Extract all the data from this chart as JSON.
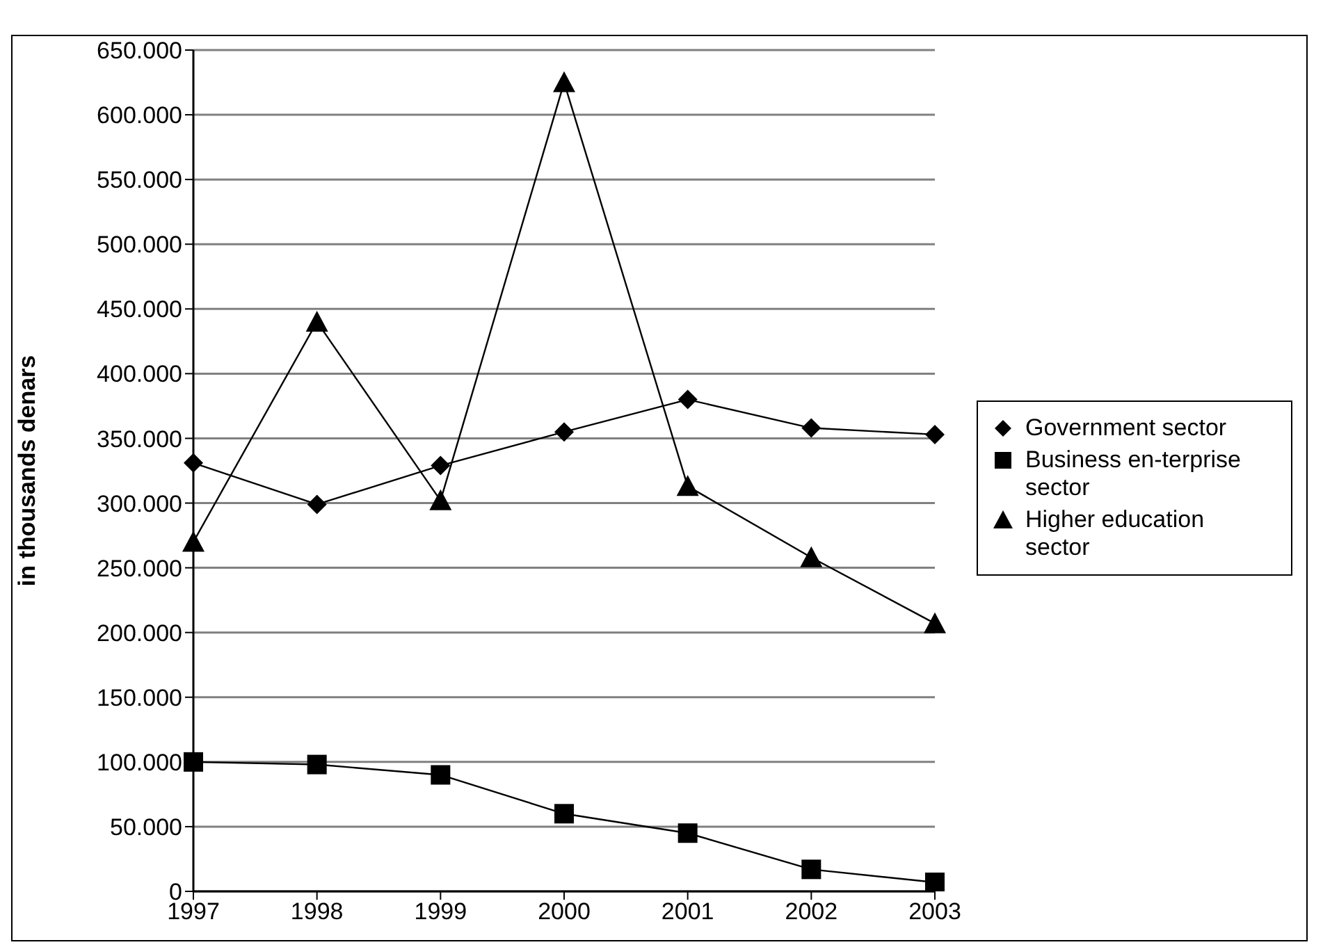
{
  "chart_data": {
    "type": "line",
    "ylabel": "in thousands denars",
    "categories": [
      "1997",
      "1998",
      "1999",
      "2000",
      "2001",
      "2002",
      "2003"
    ],
    "series": [
      {
        "name": "Government sector",
        "color": "#000000",
        "marker": "diamond",
        "values": [
          331000,
          299000,
          329000,
          355000,
          380000,
          358000,
          353000
        ]
      },
      {
        "name": "Business en-terprise sector",
        "color": "#000000",
        "marker": "square",
        "values": [
          100000,
          98000,
          90000,
          60000,
          45000,
          17000,
          7000
        ]
      },
      {
        "name": "Higher education sector",
        "color": "#000000",
        "marker": "triangle",
        "values": [
          270000,
          440000,
          302000,
          625000,
          313000,
          258000,
          207000
        ]
      }
    ],
    "ylim": [
      0,
      650000
    ],
    "yticks": [
      {
        "value": 0,
        "label": "0"
      },
      {
        "value": 50000,
        "label": "50.000"
      },
      {
        "value": 100000,
        "label": "100.000"
      },
      {
        "value": 150000,
        "label": "150.000"
      },
      {
        "value": 200000,
        "label": "200.000"
      },
      {
        "value": 250000,
        "label": "250.000"
      },
      {
        "value": 300000,
        "label": "300.000"
      },
      {
        "value": 350000,
        "label": "350.000"
      },
      {
        "value": 400000,
        "label": "400.000"
      },
      {
        "value": 450000,
        "label": "450.000"
      },
      {
        "value": 500000,
        "label": "500.000"
      },
      {
        "value": 550000,
        "label": "550.000"
      },
      {
        "value": 600000,
        "label": "600.000"
      },
      {
        "value": 650000,
        "label": "650.000"
      }
    ],
    "grid": "y",
    "legend": "right",
    "line_style": "solid"
  }
}
